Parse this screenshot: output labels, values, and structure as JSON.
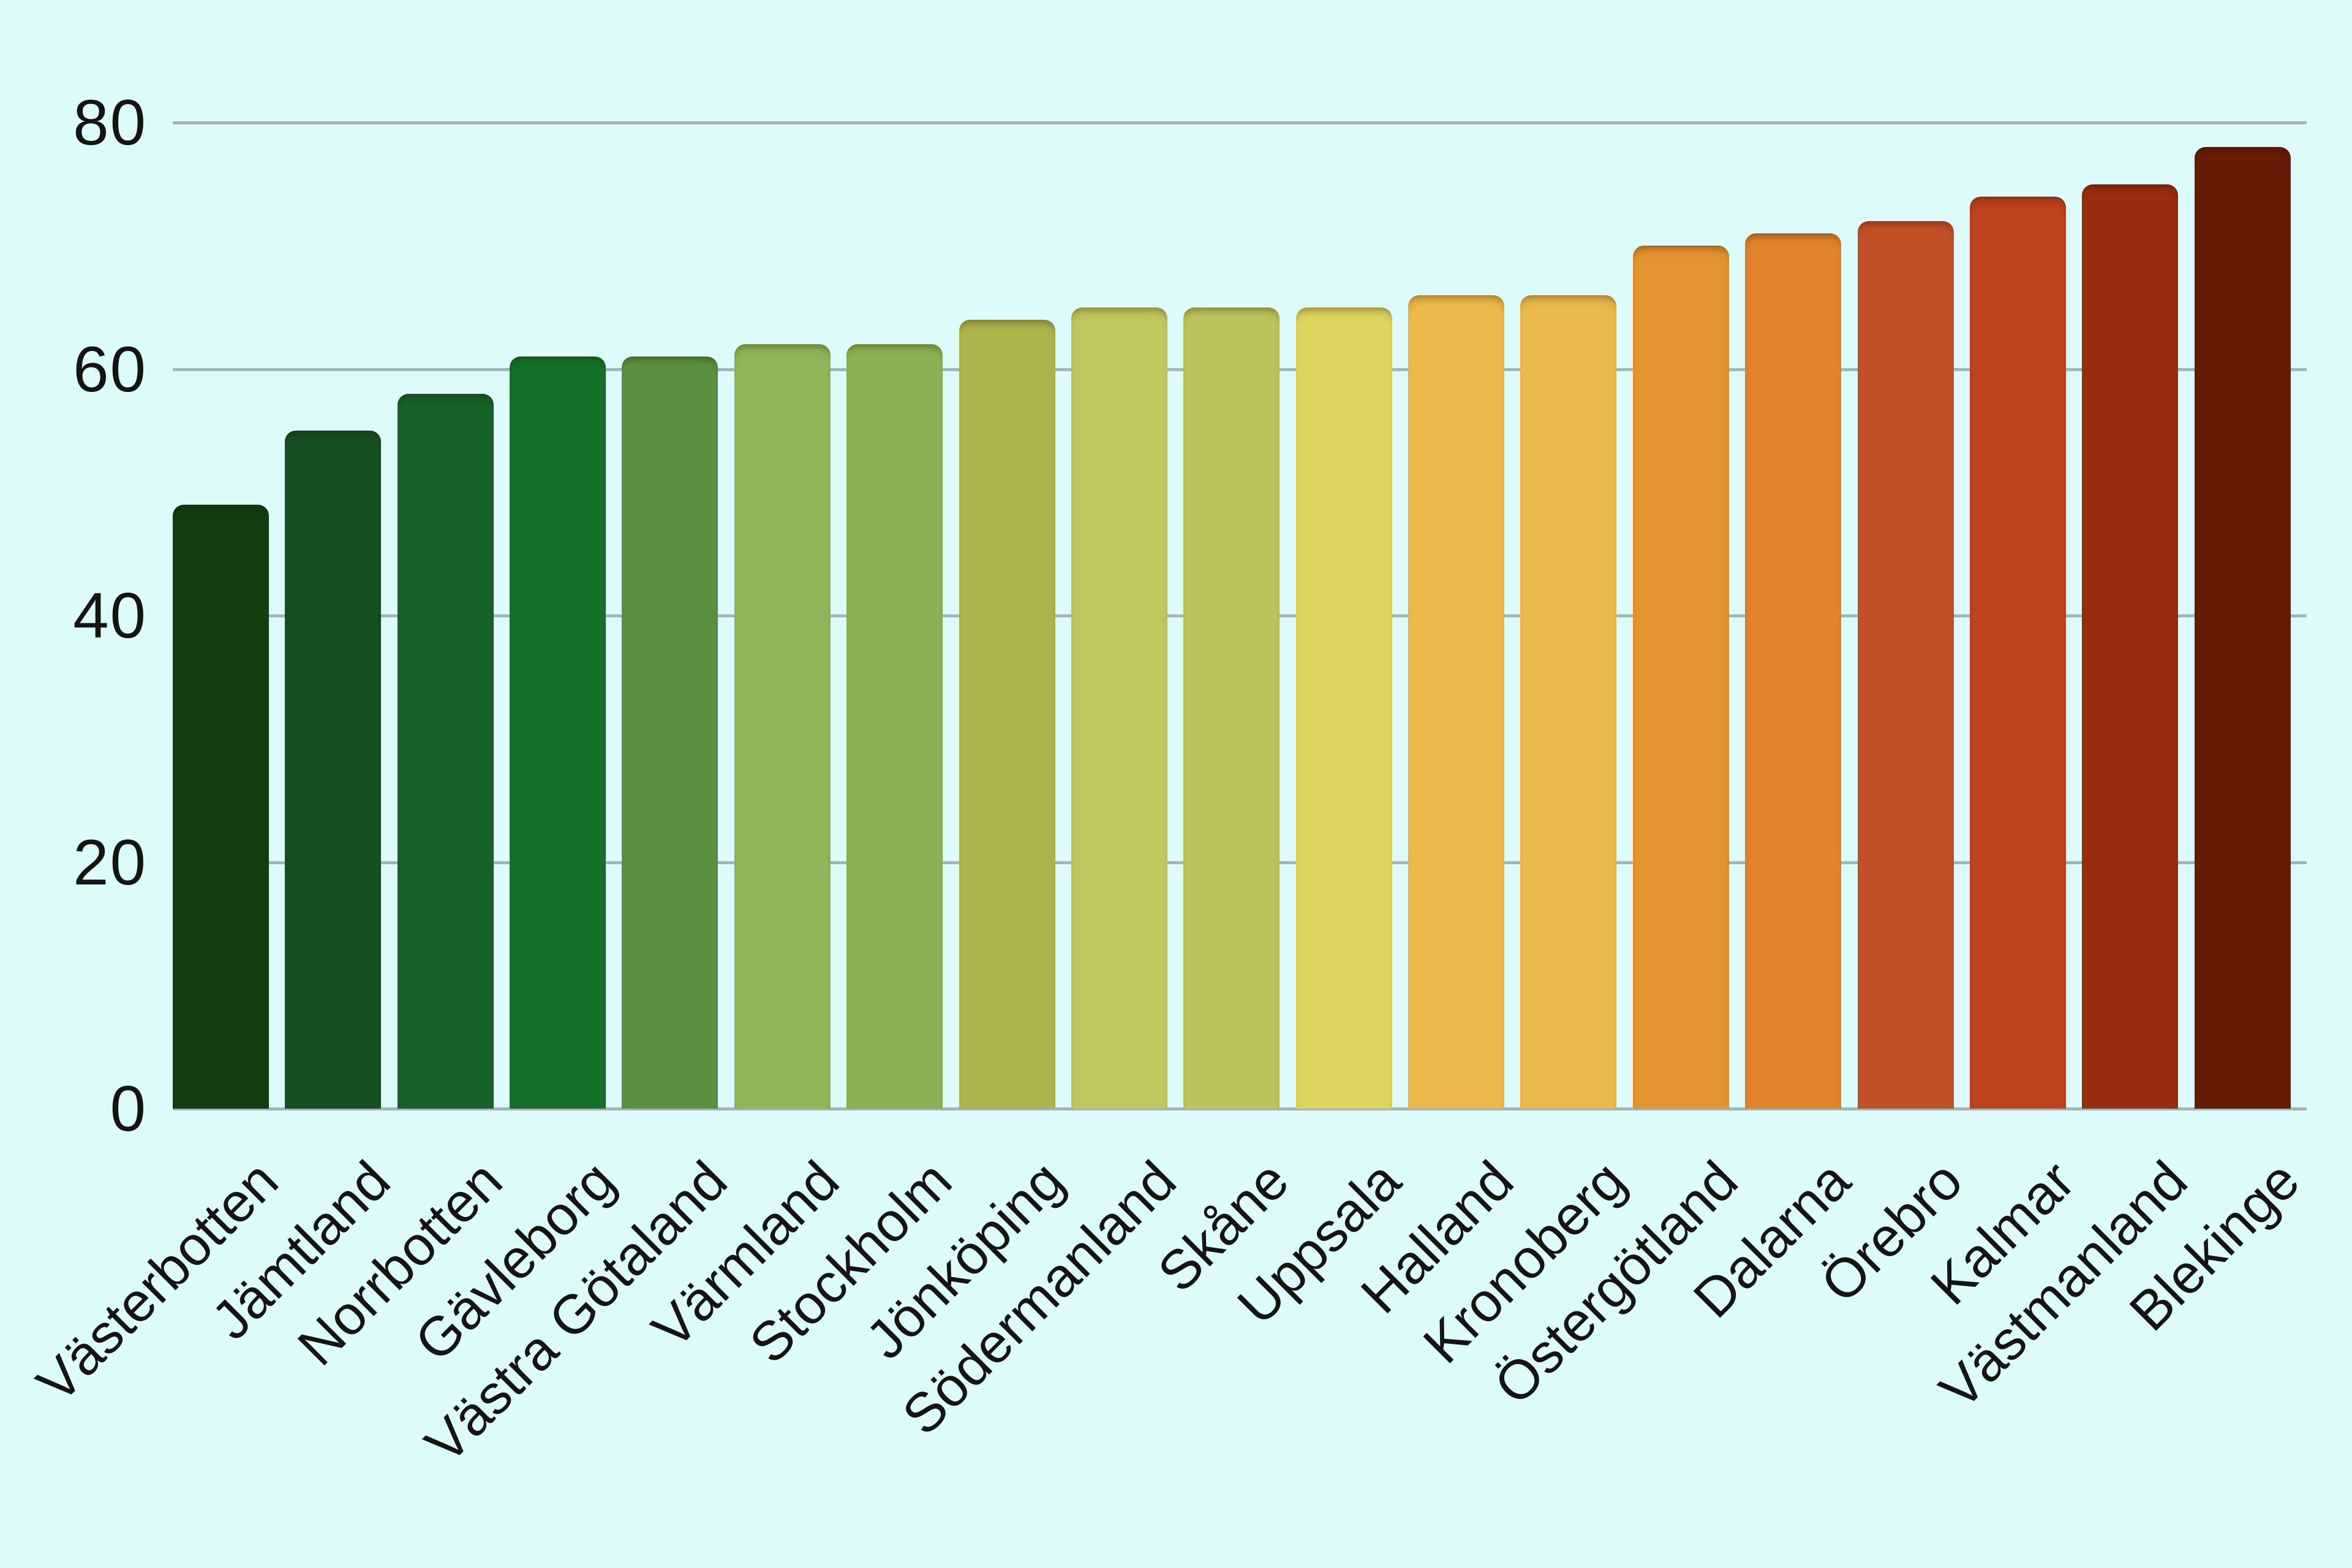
{
  "chart_data": {
    "type": "bar",
    "title": "",
    "xlabel": "",
    "ylabel": "",
    "categories": [
      "Västerbotten",
      "Jämtland",
      "Norrbotten",
      "Gävleborg",
      "Västra Götaland",
      "Värmland",
      "Stockholm",
      "Jönköping",
      "Södermanland",
      "Skåne",
      "Uppsala",
      "Halland",
      "Kronoberg",
      "Östergötland",
      "Dalarna",
      "Örebro",
      "Kalmar",
      "Västmanland",
      "Blekinge"
    ],
    "values": [
      49,
      55,
      58,
      61,
      61,
      62,
      62,
      64,
      65,
      65,
      65,
      66,
      66,
      70,
      71,
      72,
      74,
      75,
      78
    ],
    "bar_colors": [
      "#123e12",
      "#165020",
      "#17612a",
      "#15702a",
      "#5a9140",
      "#92b456",
      "#8db152",
      "#aeb44c",
      "#bfc65d",
      "#bcc35a",
      "#ddd45e",
      "#ecb74b",
      "#e9b94e",
      "#e39330",
      "#e0832b",
      "#c45027",
      "#bb431e",
      "#9a2d10",
      "#671c06"
    ],
    "yticks": [
      "0",
      "20",
      "40",
      "60",
      "80"
    ],
    "ytick_values": [
      0,
      20,
      40,
      60,
      80
    ],
    "ylim": [
      0,
      83
    ],
    "grid": true,
    "legend": false,
    "background_color": "#dcfbfa",
    "gridline_color": "#a3b5b7",
    "text_color": "#141414"
  }
}
